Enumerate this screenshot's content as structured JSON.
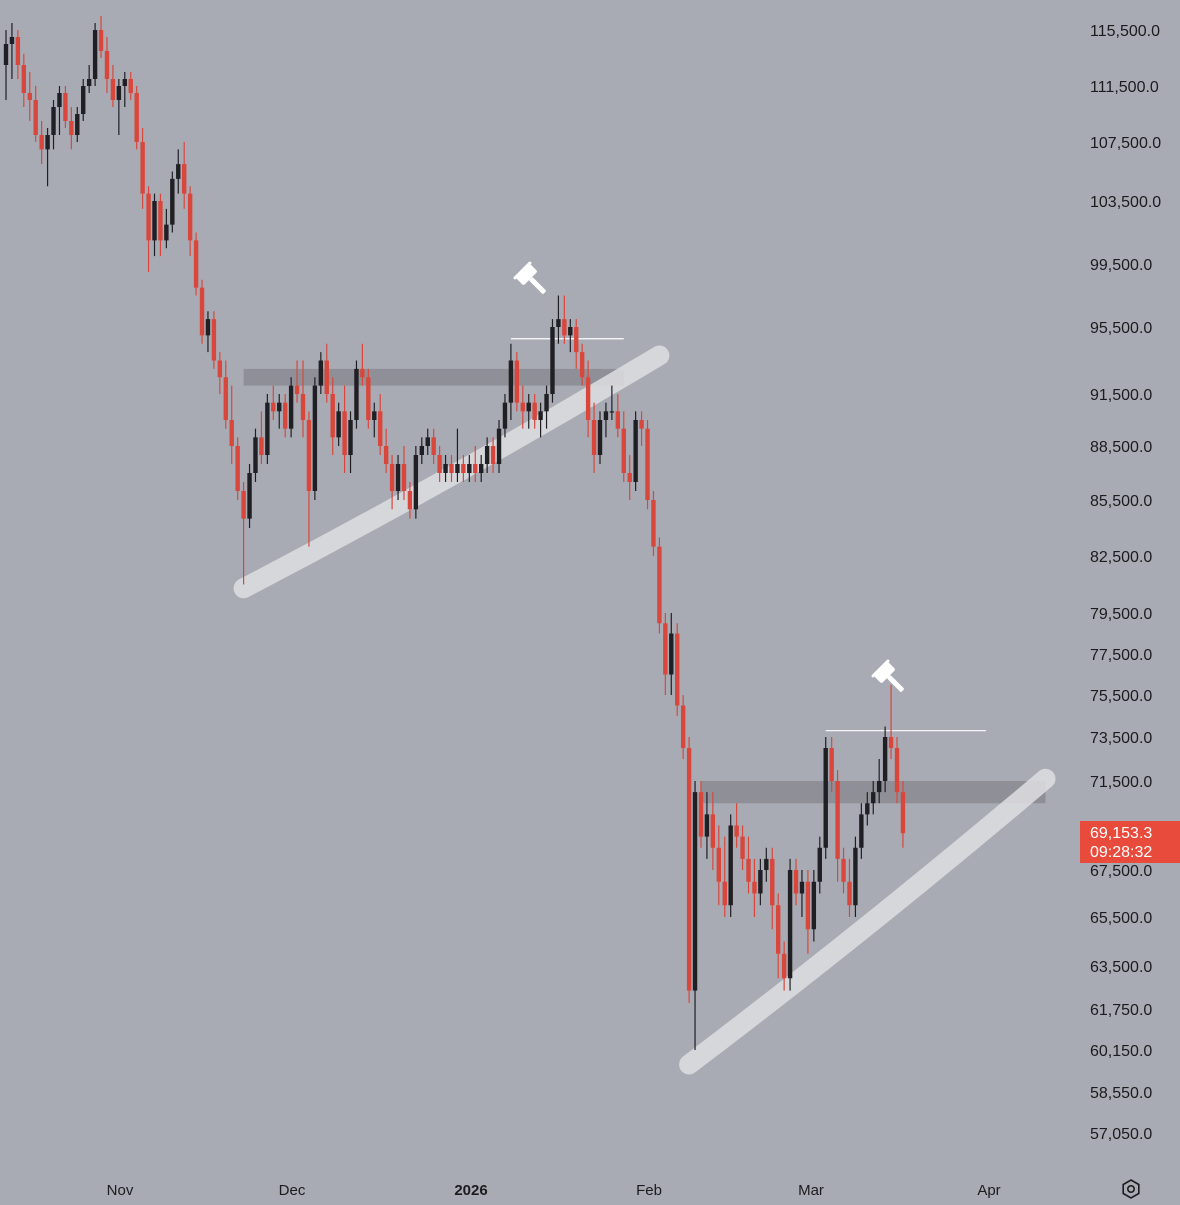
{
  "colors": {
    "background": "#a9abb4",
    "up_candle": "#1f1f24",
    "down_candle": "#d9473c",
    "zone": "#8c8d94",
    "trendline": "#dedee2",
    "price_label_bg": "#e84a3c",
    "level_line": "#ffffff"
  },
  "price_label": {
    "price": "69,153.3",
    "countdown": "09:28:32"
  },
  "settings_icon": "gear-icon",
  "annotation_icon": "gavel-icon",
  "chart_data": {
    "type": "candlestick",
    "y_ticks": [
      "115,500.0",
      "111,500.0",
      "107,500.0",
      "103,500.0",
      "99,500.0",
      "95,500.0",
      "91,500.0",
      "88,500.0",
      "85,500.0",
      "82,500.0",
      "79,500.0",
      "77,500.0",
      "75,500.0",
      "73,500.0",
      "71,500.0",
      "67,500.0",
      "65,500.0",
      "63,500.0",
      "61,750.0",
      "60,150.0",
      "58,550.0",
      "57,050.0"
    ],
    "x_ticks": [
      {
        "label": "Nov",
        "bold": false
      },
      {
        "label": "Dec",
        "bold": false
      },
      {
        "label": "2026",
        "bold": true
      },
      {
        "label": "Feb",
        "bold": false
      },
      {
        "label": "Mar",
        "bold": false
      },
      {
        "label": "Apr",
        "bold": false
      }
    ],
    "current_price": 69153.3,
    "candles": [
      [
        0,
        113000,
        115500,
        110500,
        114500
      ],
      [
        1,
        114500,
        116000,
        112000,
        115000
      ],
      [
        2,
        115000,
        115500,
        112000,
        113000
      ],
      [
        3,
        113000,
        113800,
        110000,
        111000
      ],
      [
        4,
        111000,
        112500,
        109000,
        110500
      ],
      [
        5,
        110500,
        111500,
        107500,
        108000
      ],
      [
        6,
        108000,
        109000,
        106000,
        107000
      ],
      [
        7,
        107000,
        108500,
        104500,
        108000
      ],
      [
        8,
        108000,
        110500,
        107000,
        110000
      ],
      [
        9,
        110000,
        111500,
        108000,
        111000
      ],
      [
        10,
        111000,
        111500,
        108500,
        109000
      ],
      [
        11,
        109000,
        110000,
        107000,
        108000
      ],
      [
        12,
        108000,
        110000,
        107500,
        109500
      ],
      [
        13,
        109500,
        112000,
        109000,
        111500
      ],
      [
        14,
        111500,
        113000,
        111000,
        112000
      ],
      [
        15,
        112000,
        116000,
        111500,
        115500
      ],
      [
        16,
        115500,
        116500,
        113500,
        114000
      ],
      [
        17,
        114000,
        115000,
        111000,
        112000
      ],
      [
        18,
        112000,
        113000,
        110000,
        110500
      ],
      [
        19,
        110500,
        112000,
        108000,
        111500
      ],
      [
        20,
        111500,
        112500,
        110000,
        112000
      ],
      [
        21,
        112000,
        112500,
        110500,
        111000
      ],
      [
        22,
        111000,
        111500,
        107000,
        107500
      ],
      [
        23,
        107500,
        108500,
        103000,
        104000
      ],
      [
        24,
        104000,
        104500,
        99000,
        101000
      ],
      [
        25,
        101000,
        104000,
        100000,
        103500
      ],
      [
        26,
        103500,
        104000,
        100000,
        101000
      ],
      [
        27,
        101000,
        103000,
        100500,
        102000
      ],
      [
        28,
        102000,
        105500,
        101500,
        105000
      ],
      [
        29,
        105000,
        107000,
        104000,
        106000
      ],
      [
        30,
        106000,
        107500,
        103000,
        104000
      ],
      [
        31,
        104000,
        104500,
        100000,
        101000
      ],
      [
        32,
        101000,
        101500,
        97500,
        98000
      ],
      [
        33,
        98000,
        98500,
        94500,
        95000
      ],
      [
        34,
        95000,
        96500,
        94000,
        96000
      ],
      [
        35,
        96000,
        96500,
        93000,
        93500
      ],
      [
        36,
        93500,
        94000,
        91500,
        92500
      ],
      [
        37,
        92500,
        93500,
        89500,
        90000
      ],
      [
        38,
        90000,
        92000,
        87500,
        88500
      ],
      [
        39,
        88500,
        89000,
        85500,
        86000
      ],
      [
        40,
        86000,
        86500,
        81000,
        84500
      ],
      [
        41,
        84500,
        87500,
        84000,
        87000
      ],
      [
        42,
        87000,
        89500,
        86500,
        89000
      ],
      [
        43,
        89000,
        90500,
        87500,
        88000
      ],
      [
        44,
        88000,
        91500,
        87500,
        91000
      ],
      [
        45,
        91000,
        92000,
        90000,
        90500
      ],
      [
        46,
        90500,
        91500,
        89500,
        91000
      ],
      [
        47,
        91000,
        91500,
        89000,
        89500
      ],
      [
        48,
        89500,
        92500,
        89000,
        92000
      ],
      [
        49,
        92000,
        93500,
        91000,
        91500
      ],
      [
        50,
        91500,
        93500,
        89000,
        90000
      ],
      [
        51,
        90000,
        90500,
        83000,
        86000
      ],
      [
        52,
        86000,
        92500,
        85500,
        92000
      ],
      [
        53,
        92000,
        94000,
        91500,
        93500
      ],
      [
        54,
        93500,
        94500,
        91000,
        91500
      ],
      [
        55,
        91500,
        92500,
        88000,
        89000
      ],
      [
        56,
        89000,
        91000,
        88500,
        90500
      ],
      [
        57,
        90500,
        92000,
        87000,
        88000
      ],
      [
        58,
        88000,
        90500,
        87000,
        90000
      ],
      [
        59,
        90000,
        93500,
        89500,
        93000
      ],
      [
        60,
        93000,
        94500,
        92000,
        92500
      ],
      [
        61,
        92500,
        93000,
        89500,
        90000
      ],
      [
        62,
        90000,
        91000,
        89000,
        90500
      ],
      [
        63,
        90500,
        91500,
        88000,
        88500
      ],
      [
        64,
        88500,
        89500,
        87000,
        87500
      ],
      [
        65,
        87500,
        88000,
        85000,
        86000
      ],
      [
        66,
        86000,
        88000,
        85500,
        87500
      ],
      [
        67,
        87500,
        88500,
        85500,
        86000
      ],
      [
        68,
        86000,
        86500,
        84500,
        85000
      ],
      [
        69,
        85000,
        88500,
        84500,
        88000
      ],
      [
        70,
        88000,
        89000,
        87500,
        88500
      ],
      [
        71,
        88500,
        89500,
        88000,
        89000
      ],
      [
        72,
        89000,
        89500,
        87500,
        88000
      ],
      [
        73,
        88000,
        88500,
        86500,
        87000
      ],
      [
        74,
        87000,
        88000,
        86500,
        87500
      ],
      [
        75,
        87500,
        88000,
        86500,
        87000
      ],
      [
        76,
        87000,
        89500,
        86500,
        87500
      ],
      [
        77,
        87500,
        88000,
        86500,
        87000
      ],
      [
        78,
        87000,
        88000,
        86500,
        87500
      ],
      [
        79,
        87500,
        88500,
        86500,
        87000
      ],
      [
        80,
        87000,
        88000,
        86500,
        87500
      ],
      [
        81,
        87500,
        89000,
        87000,
        88500
      ],
      [
        82,
        88500,
        89000,
        87000,
        87500
      ],
      [
        83,
        87500,
        90000,
        87000,
        89500
      ],
      [
        84,
        89500,
        91500,
        89000,
        91000
      ],
      [
        85,
        91000,
        94500,
        90000,
        93500
      ],
      [
        86,
        93500,
        94000,
        90500,
        91000
      ],
      [
        87,
        91000,
        92000,
        89500,
        90500
      ],
      [
        88,
        90500,
        91500,
        89500,
        91000
      ],
      [
        89,
        91000,
        91500,
        89500,
        90000
      ],
      [
        90,
        90000,
        91000,
        89000,
        90500
      ],
      [
        91,
        90500,
        92000,
        89500,
        91500
      ],
      [
        92,
        91500,
        96000,
        91000,
        95500
      ],
      [
        93,
        95500,
        97500,
        94500,
        96000
      ],
      [
        94,
        96000,
        97500,
        94500,
        95000
      ],
      [
        95,
        95000,
        96000,
        94000,
        95500
      ],
      [
        96,
        95500,
        96000,
        93000,
        94000
      ],
      [
        97,
        94000,
        94500,
        92000,
        92500
      ],
      [
        98,
        92500,
        93500,
        89000,
        90000
      ],
      [
        99,
        90000,
        91000,
        87000,
        88000
      ],
      [
        100,
        88000,
        90500,
        87500,
        90000
      ],
      [
        101,
        90000,
        91000,
        89000,
        90500
      ],
      [
        102,
        90500,
        92000,
        90000,
        90500
      ],
      [
        103,
        90500,
        91500,
        89000,
        89500
      ],
      [
        104,
        89500,
        90500,
        86500,
        87000
      ],
      [
        105,
        87000,
        88000,
        85500,
        86500
      ],
      [
        106,
        86500,
        90500,
        86000,
        90000
      ],
      [
        107,
        90000,
        90500,
        88500,
        89500
      ],
      [
        108,
        89500,
        90000,
        85000,
        85500
      ],
      [
        109,
        85500,
        86000,
        82500,
        83000
      ],
      [
        110,
        83000,
        83500,
        78500,
        79000
      ],
      [
        111,
        79000,
        79500,
        75500,
        76500
      ],
      [
        112,
        76500,
        79500,
        75500,
        78500
      ],
      [
        113,
        78500,
        79000,
        74500,
        75000
      ],
      [
        114,
        75000,
        75500,
        72500,
        73000
      ],
      [
        115,
        73000,
        73500,
        62000,
        62500
      ],
      [
        116,
        62500,
        71500,
        60150,
        71000
      ],
      [
        117,
        71000,
        71500,
        68500,
        69000
      ],
      [
        118,
        69000,
        71000,
        68000,
        70000
      ],
      [
        119,
        70000,
        71000,
        67500,
        68500
      ],
      [
        120,
        68500,
        69500,
        66000,
        67000
      ],
      [
        121,
        67000,
        69000,
        65500,
        66000
      ],
      [
        122,
        66000,
        70000,
        65500,
        69500
      ],
      [
        123,
        69500,
        70500,
        68500,
        69000
      ],
      [
        124,
        69000,
        69500,
        67500,
        68000
      ],
      [
        125,
        68000,
        69000,
        66500,
        67000
      ],
      [
        126,
        67000,
        68000,
        65500,
        66500
      ],
      [
        127,
        66500,
        68000,
        66000,
        67500
      ],
      [
        128,
        67500,
        68500,
        67000,
        68000
      ],
      [
        129,
        68000,
        68500,
        65000,
        66000
      ],
      [
        130,
        66000,
        66500,
        63000,
        64000
      ],
      [
        131,
        64000,
        64500,
        62500,
        63000
      ],
      [
        132,
        63000,
        68000,
        62500,
        67500
      ],
      [
        133,
        67500,
        68000,
        66000,
        66500
      ],
      [
        134,
        66500,
        67500,
        65500,
        67000
      ],
      [
        135,
        67000,
        67500,
        64000,
        65000
      ],
      [
        136,
        65000,
        67500,
        64500,
        67000
      ],
      [
        137,
        67000,
        69000,
        66500,
        68500
      ],
      [
        138,
        68500,
        73500,
        68000,
        73000
      ],
      [
        139,
        73000,
        73500,
        71000,
        71500
      ],
      [
        140,
        71500,
        72000,
        67000,
        68000
      ],
      [
        141,
        68000,
        68500,
        66500,
        67000
      ],
      [
        142,
        67000,
        68000,
        65500,
        66000
      ],
      [
        143,
        66000,
        69000,
        65500,
        68500
      ],
      [
        144,
        68500,
        70500,
        68000,
        70000
      ],
      [
        145,
        70000,
        71000,
        69500,
        70500
      ],
      [
        146,
        70500,
        71500,
        70000,
        71000
      ],
      [
        147,
        71000,
        72500,
        70500,
        71500
      ],
      [
        148,
        71500,
        74000,
        71000,
        73500
      ],
      [
        149,
        73500,
        76000,
        72500,
        73000
      ],
      [
        150,
        73000,
        73500,
        70500,
        71000
      ],
      [
        151,
        71000,
        71500,
        68500,
        69153.3
      ]
    ],
    "zones": [
      {
        "from": 40,
        "to": 104,
        "low": 92000,
        "high": 93000
      },
      {
        "from": 117,
        "to": 175,
        "low": 70500,
        "high": 71500
      }
    ],
    "levels": [
      {
        "from": 85,
        "to": 104,
        "price": 94800
      },
      {
        "from": 138,
        "to": 165,
        "price": 73800
      }
    ],
    "trendlines": [
      {
        "from": [
          40,
          80800
        ],
        "to": [
          110,
          93800
        ]
      },
      {
        "from": [
          115,
          59600
        ],
        "to": [
          175,
          71600
        ]
      }
    ]
  }
}
